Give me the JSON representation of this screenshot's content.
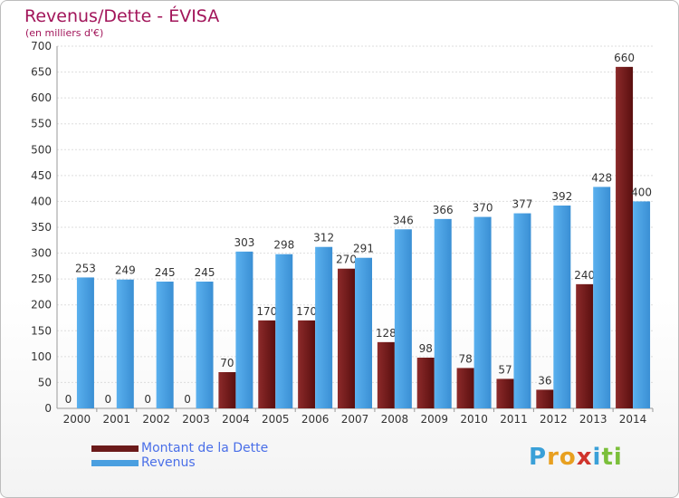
{
  "chart_data": {
    "type": "bar",
    "title": "Revenus/Dette - ÉVISA",
    "subtitle": "(en milliers d'€)",
    "categories": [
      "2000",
      "2001",
      "2002",
      "2003",
      "2004",
      "2005",
      "2006",
      "2007",
      "2008",
      "2009",
      "2010",
      "2011",
      "2012",
      "2013",
      "2014"
    ],
    "series": [
      {
        "name": "Montant de la Dette",
        "color": "#6b1a1a",
        "values": [
          0,
          0,
          0,
          0,
          70,
          170,
          170,
          270,
          128,
          98,
          78,
          57,
          36,
          240,
          660
        ]
      },
      {
        "name": "Revenus",
        "color": "#4a9fe0",
        "values": [
          253,
          249,
          245,
          245,
          303,
          298,
          312,
          291,
          346,
          366,
          370,
          377,
          392,
          428,
          400
        ]
      }
    ],
    "ylim": [
      0,
      700
    ],
    "yticks": [
      0,
      50,
      100,
      150,
      200,
      250,
      300,
      350,
      400,
      450,
      500,
      550,
      600,
      650,
      700
    ],
    "grid": true,
    "legend_position": "bottom-left"
  },
  "logo": {
    "letters": [
      "P",
      "r",
      "o",
      "x",
      "i",
      "t",
      "i"
    ],
    "colors": [
      "#3aa0d8",
      "#e8a020",
      "#e8a020",
      "#d0342c",
      "#3aa0d8",
      "#7bbf3a",
      "#7bbf3a"
    ]
  }
}
